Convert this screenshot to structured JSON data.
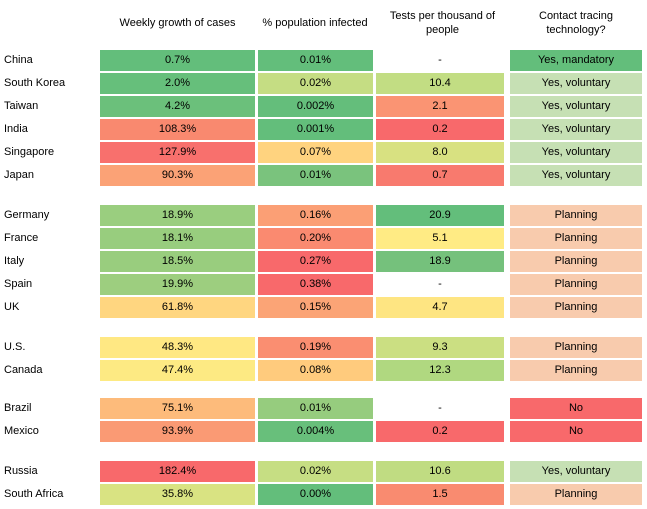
{
  "chart_data": {
    "type": "table",
    "columns": [
      "Weekly growth of cases",
      "% population infected",
      "Tests per thousand of people",
      "Contact tracing technology?"
    ],
    "rows": [
      {
        "country": "China",
        "cells": [
          "0.7%",
          "0.01%",
          "-",
          "Yes, mandatory"
        ],
        "colors": [
          "#63be7b",
          "#63be7b",
          "#ffffff",
          "#63be7b"
        ]
      },
      {
        "country": "South Korea",
        "cells": [
          "2.0%",
          "0.02%",
          "10.4",
          "Yes, voluntary"
        ],
        "colors": [
          "#66bf7b",
          "#c5dd83",
          "#c2dd83",
          "#c6e0b4"
        ]
      },
      {
        "country": "Taiwan",
        "cells": [
          "4.2%",
          "0.002%",
          "2.1",
          "Yes, voluntary"
        ],
        "colors": [
          "#6bc07b",
          "#64be7b",
          "#fa9473",
          "#c6e0b4"
        ]
      },
      {
        "country": "India",
        "cells": [
          "108.3%",
          "0.001%",
          "0.2",
          "Yes, voluntary"
        ],
        "colors": [
          "#f9896f",
          "#63be7b",
          "#f8696b",
          "#c6e0b4"
        ]
      },
      {
        "country": "Singapore",
        "cells": [
          "127.9%",
          "0.07%",
          "8.0",
          "Yes, voluntary"
        ],
        "colors": [
          "#f8706d",
          "#ffd37f",
          "#d8e181",
          "#c6e0b4"
        ]
      },
      {
        "country": "Japan",
        "cells": [
          "90.3%",
          "0.01%",
          "0.7",
          "Yes, voluntary"
        ],
        "colors": [
          "#fba276",
          "#7ac37d",
          "#f87a6e",
          "#c6e0b4"
        ]
      },
      {
        "country": "Germany",
        "cells": [
          "18.9%",
          "0.16%",
          "20.9",
          "Planning"
        ],
        "colors": [
          "#9ace7f",
          "#fb9f75",
          "#63be7b",
          "#f8cbad"
        ]
      },
      {
        "country": "France",
        "cells": [
          "18.1%",
          "0.20%",
          "5.1",
          "Planning"
        ],
        "colors": [
          "#98cd7e",
          "#fa8a70",
          "#ffeb84",
          "#f8cbad"
        ]
      },
      {
        "country": "Italy",
        "cells": [
          "18.5%",
          "0.27%",
          "18.9",
          "Planning"
        ],
        "colors": [
          "#99cd7e",
          "#f8696b",
          "#75c17c",
          "#f8cbad"
        ]
      },
      {
        "country": "Spain",
        "cells": [
          "19.9%",
          "0.38%",
          "-",
          "Planning"
        ],
        "colors": [
          "#9dce7f",
          "#f8696b",
          "#ffffff",
          "#f8cbad"
        ]
      },
      {
        "country": "UK",
        "cells": [
          "61.8%",
          "0.15%",
          "4.7",
          "Planning"
        ],
        "colors": [
          "#ffd680",
          "#fba476",
          "#fee582",
          "#f8cbad"
        ]
      },
      {
        "country": "U.S.",
        "cells": [
          "48.3%",
          "0.19%",
          "9.3",
          "Planning"
        ],
        "colors": [
          "#ffe883",
          "#fa8e71",
          "#cbdf82",
          "#f8cbad"
        ]
      },
      {
        "country": "Canada",
        "cells": [
          "47.4%",
          "0.08%",
          "12.3",
          "Planning"
        ],
        "colors": [
          "#fdea83",
          "#ffcb7d",
          "#b0d880",
          "#f8cbad"
        ]
      },
      {
        "country": "Brazil",
        "cells": [
          "75.1%",
          "0.01%",
          "-",
          "No"
        ],
        "colors": [
          "#fdbb7b",
          "#96cc7e",
          "#ffffff",
          "#f8696b"
        ]
      },
      {
        "country": "Mexico",
        "cells": [
          "93.9%",
          "0.004%",
          "0.2",
          "No"
        ],
        "colors": [
          "#fa9a74",
          "#68bf7b",
          "#f8696b",
          "#f8696b"
        ]
      },
      {
        "country": "Russia",
        "cells": [
          "182.4%",
          "0.02%",
          "10.6",
          "Yes, voluntary"
        ],
        "colors": [
          "#f8696b",
          "#c6de83",
          "#c0dc82",
          "#c6e0b4"
        ]
      },
      {
        "country": "South Africa",
        "cells": [
          "35.8%",
          "0.00%",
          "1.5",
          "Planning"
        ],
        "colors": [
          "#d9e382",
          "#63be7b",
          "#f98b70",
          "#f8cbad"
        ]
      }
    ]
  }
}
